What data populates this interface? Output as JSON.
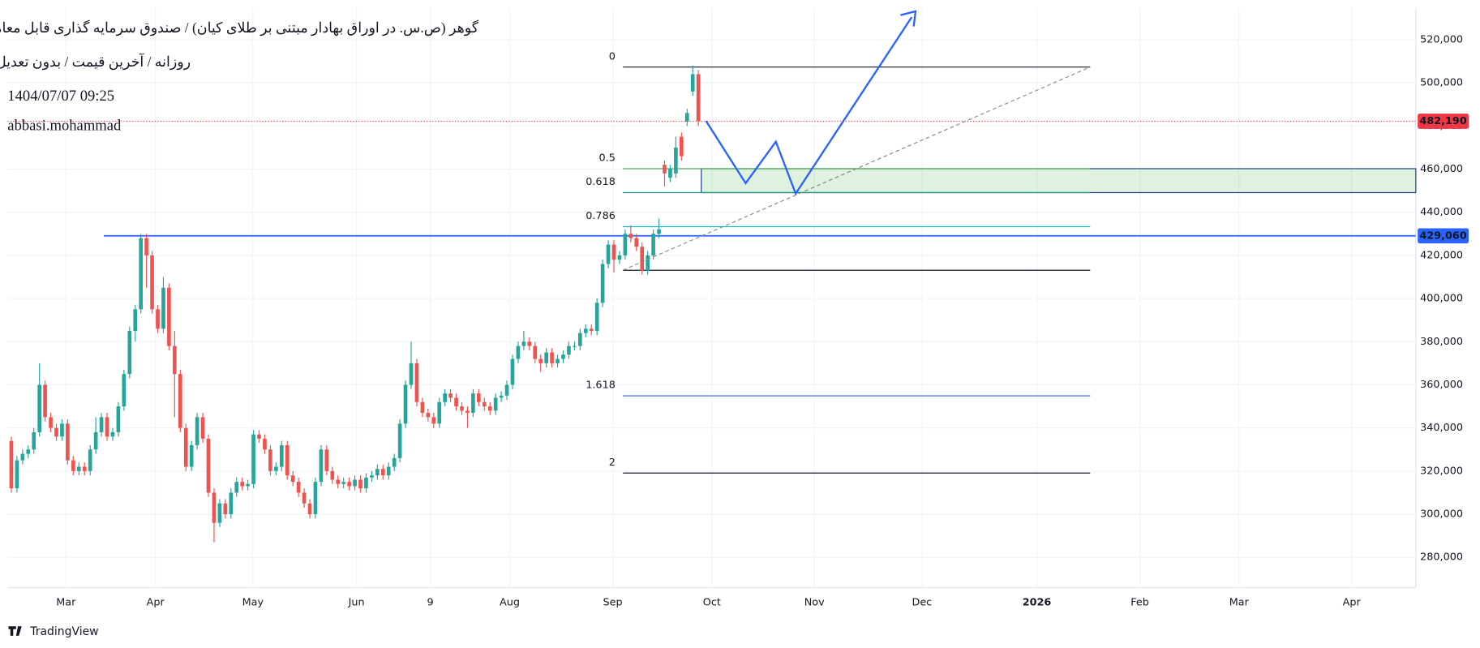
{
  "header": {
    "title": "گوهر (ص.س. در اوراق بهادار مبتنی بر طلای کیان) / صندوق سرمایه گذاری قابل معامله",
    "subtitle": "روزانه / آخرین قیمت / بدون تعدیل",
    "timestamp": "1404/07/07 09:25",
    "author": "abbasi.mohammad",
    "brand": "TradingView"
  },
  "chart_data": {
    "type": "candlestick",
    "up_color": "#26a69a",
    "down_color": "#ef5350",
    "grid": true,
    "open": [
      334000,
      312000,
      325000,
      328000,
      330000,
      338000,
      360000,
      345000,
      340000,
      336000,
      342000,
      325000,
      320000,
      322000,
      320000,
      330000,
      338000,
      345000,
      336000,
      338000,
      350000,
      365000,
      385000,
      395000,
      428000,
      420000,
      395000,
      386000,
      405000,
      378000,
      365000,
      340000,
      322000,
      332000,
      345000,
      335000,
      310000,
      296000,
      305000,
      300000,
      310000,
      315000,
      313000,
      314000,
      337000,
      335000,
      330000,
      320000,
      322000,
      332000,
      318000,
      315000,
      310000,
      305000,
      300000,
      315000,
      330000,
      320000,
      316000,
      314000,
      315000,
      313000,
      316000,
      312000,
      317000,
      318000,
      321000,
      318000,
      322000,
      326000,
      342000,
      360000,
      370000,
      352000,
      347000,
      345000,
      342000,
      352000,
      356000,
      354000,
      350000,
      348000,
      347000,
      356000,
      352000,
      350000,
      348000,
      354000,
      355000,
      360000,
      372000,
      378000,
      380000,
      378000,
      372000,
      370000,
      375000,
      370000,
      372000,
      374000,
      378000,
      378000,
      384000,
      386000,
      385000,
      398000,
      416000,
      425000,
      418000,
      420000,
      430000,
      428000,
      424000,
      413000,
      420000,
      430000,
      462000,
      456000,
      458000,
      475000,
      482000,
      496000,
      504000
    ],
    "high": [
      336000,
      327000,
      330000,
      332000,
      340000,
      370000,
      362000,
      347000,
      342000,
      344000,
      344000,
      327000,
      324000,
      324000,
      332000,
      345000,
      347000,
      347000,
      340000,
      352000,
      367000,
      387000,
      397000,
      430000,
      430000,
      422000,
      397000,
      410000,
      407000,
      385000,
      367000,
      342000,
      334000,
      347000,
      347000,
      337000,
      312000,
      307000,
      307000,
      312000,
      317000,
      317000,
      316000,
      339000,
      339000,
      337000,
      332000,
      324000,
      334000,
      334000,
      320000,
      317000,
      312000,
      307000,
      317000,
      332000,
      332000,
      322000,
      318000,
      317000,
      317000,
      318000,
      318000,
      319000,
      320000,
      323000,
      323000,
      324000,
      328000,
      344000,
      362000,
      380000,
      372000,
      354000,
      349000,
      347000,
      354000,
      358000,
      358000,
      356000,
      352000,
      350000,
      358000,
      358000,
      354000,
      352000,
      356000,
      357000,
      362000,
      374000,
      380000,
      385000,
      382000,
      380000,
      374000,
      377000,
      377000,
      374000,
      376000,
      380000,
      380000,
      386000,
      388000,
      388000,
      400000,
      418000,
      427000,
      427000,
      422000,
      432000,
      434000,
      430000,
      426000,
      422000,
      432000,
      437000,
      464000,
      462000,
      475000,
      477000,
      488000,
      508000,
      506000
    ],
    "low": [
      310000,
      310000,
      323000,
      326000,
      328000,
      336000,
      343000,
      338000,
      334000,
      334000,
      323000,
      318000,
      318000,
      318000,
      318000,
      328000,
      336000,
      334000,
      334000,
      336000,
      348000,
      363000,
      380000,
      393000,
      405000,
      393000,
      384000,
      384000,
      376000,
      345000,
      338000,
      320000,
      320000,
      330000,
      333000,
      308000,
      287000,
      294000,
      298000,
      298000,
      308000,
      311000,
      311000,
      312000,
      333000,
      328000,
      318000,
      318000,
      320000,
      316000,
      313000,
      308000,
      303000,
      298000,
      298000,
      313000,
      318000,
      314000,
      312000,
      312000,
      311000,
      311000,
      310000,
      310000,
      315000,
      316000,
      316000,
      316000,
      320000,
      324000,
      340000,
      358000,
      350000,
      345000,
      343000,
      340000,
      340000,
      350000,
      352000,
      348000,
      346000,
      340000,
      345000,
      350000,
      348000,
      346000,
      346000,
      352000,
      353000,
      358000,
      370000,
      376000,
      376000,
      370000,
      366000,
      368000,
      368000,
      368000,
      370000,
      372000,
      376000,
      376000,
      382000,
      383000,
      383000,
      396000,
      414000,
      412000,
      416000,
      418000,
      426000,
      422000,
      411000,
      411000,
      418000,
      428000,
      452000,
      454000,
      456000,
      464000,
      480000,
      494000,
      480000
    ],
    "close": [
      312000,
      325000,
      328000,
      330000,
      338000,
      360000,
      345000,
      340000,
      336000,
      342000,
      325000,
      320000,
      322000,
      320000,
      330000,
      338000,
      345000,
      336000,
      338000,
      350000,
      365000,
      385000,
      395000,
      428000,
      420000,
      395000,
      386000,
      405000,
      378000,
      365000,
      340000,
      322000,
      332000,
      345000,
      335000,
      310000,
      296000,
      305000,
      300000,
      310000,
      315000,
      313000,
      314000,
      337000,
      335000,
      330000,
      320000,
      322000,
      332000,
      318000,
      315000,
      310000,
      305000,
      300000,
      315000,
      330000,
      320000,
      316000,
      314000,
      315000,
      313000,
      316000,
      312000,
      317000,
      318000,
      321000,
      318000,
      322000,
      326000,
      342000,
      360000,
      370000,
      352000,
      347000,
      345000,
      342000,
      352000,
      356000,
      354000,
      350000,
      348000,
      347000,
      356000,
      352000,
      350000,
      348000,
      354000,
      355000,
      360000,
      372000,
      378000,
      380000,
      378000,
      372000,
      370000,
      375000,
      370000,
      372000,
      374000,
      378000,
      378000,
      384000,
      386000,
      385000,
      398000,
      416000,
      425000,
      418000,
      420000,
      430000,
      428000,
      424000,
      413000,
      420000,
      430000,
      432000,
      458000,
      460000,
      470000,
      466000,
      486000,
      504000,
      482190
    ],
    "xlim": [
      -0.67,
      249.4
    ],
    "xticks": [
      {
        "value": 9.7,
        "label": "Mar"
      },
      {
        "value": 25.6,
        "label": "Apr"
      },
      {
        "value": 42.9,
        "label": "May"
      },
      {
        "value": 61.3,
        "label": "Jun"
      },
      {
        "value": 74.4,
        "label": "9"
      },
      {
        "value": 88.5,
        "label": "Aug"
      },
      {
        "value": 106.8,
        "label": "Sep"
      },
      {
        "value": 124.4,
        "label": "Oct"
      },
      {
        "value": 142.6,
        "label": "Nov"
      },
      {
        "value": 161.7,
        "label": "Dec"
      },
      {
        "value": 182.1,
        "label": "2026"
      },
      {
        "value": 200.4,
        "label": "Feb"
      },
      {
        "value": 218,
        "label": "Mar"
      },
      {
        "value": 238,
        "label": "Apr"
      }
    ],
    "ylim": [
      266000,
      534900
    ],
    "yticks": [
      {
        "value": 280000,
        "label": "280,000"
      },
      {
        "value": 300000,
        "label": "300,000"
      },
      {
        "value": 320000,
        "label": "320,000"
      },
      {
        "value": 340000,
        "label": "340,000"
      },
      {
        "value": 360000,
        "label": "360,000"
      },
      {
        "value": 380000,
        "label": "380,000"
      },
      {
        "value": 400000,
        "label": "400,000"
      },
      {
        "value": 420000,
        "label": "420,000"
      },
      {
        "value": 440000,
        "label": "440,000"
      },
      {
        "value": 460000,
        "label": "460,000"
      },
      {
        "value": 480000,
        "label": "480,000"
      },
      {
        "value": 500000,
        "label": "500,000"
      },
      {
        "value": 520000,
        "label": "520,000"
      }
    ],
    "fib_levels": [
      {
        "label": "0",
        "price": 507300,
        "color": "#131722"
      },
      {
        "label": "0.5",
        "price": 460200,
        "color": "#4caf50"
      },
      {
        "label": "0.618",
        "price": 449100,
        "color": "#089981"
      },
      {
        "label": "0.786",
        "price": 433300,
        "color": "#00bcd4"
      },
      {
        "label": null,
        "price": 413100,
        "color": "#131722"
      },
      {
        "label": "1.618",
        "price": 354900,
        "color": "#2962ff"
      },
      {
        "label": "2",
        "price": 319100,
        "color": "#131722"
      }
    ],
    "horizontal_line": {
      "value": 429060,
      "label": "429,060",
      "color": "#2962ff"
    },
    "last_price": {
      "value": 482190,
      "label": "482,190",
      "color": "#f23645"
    }
  }
}
